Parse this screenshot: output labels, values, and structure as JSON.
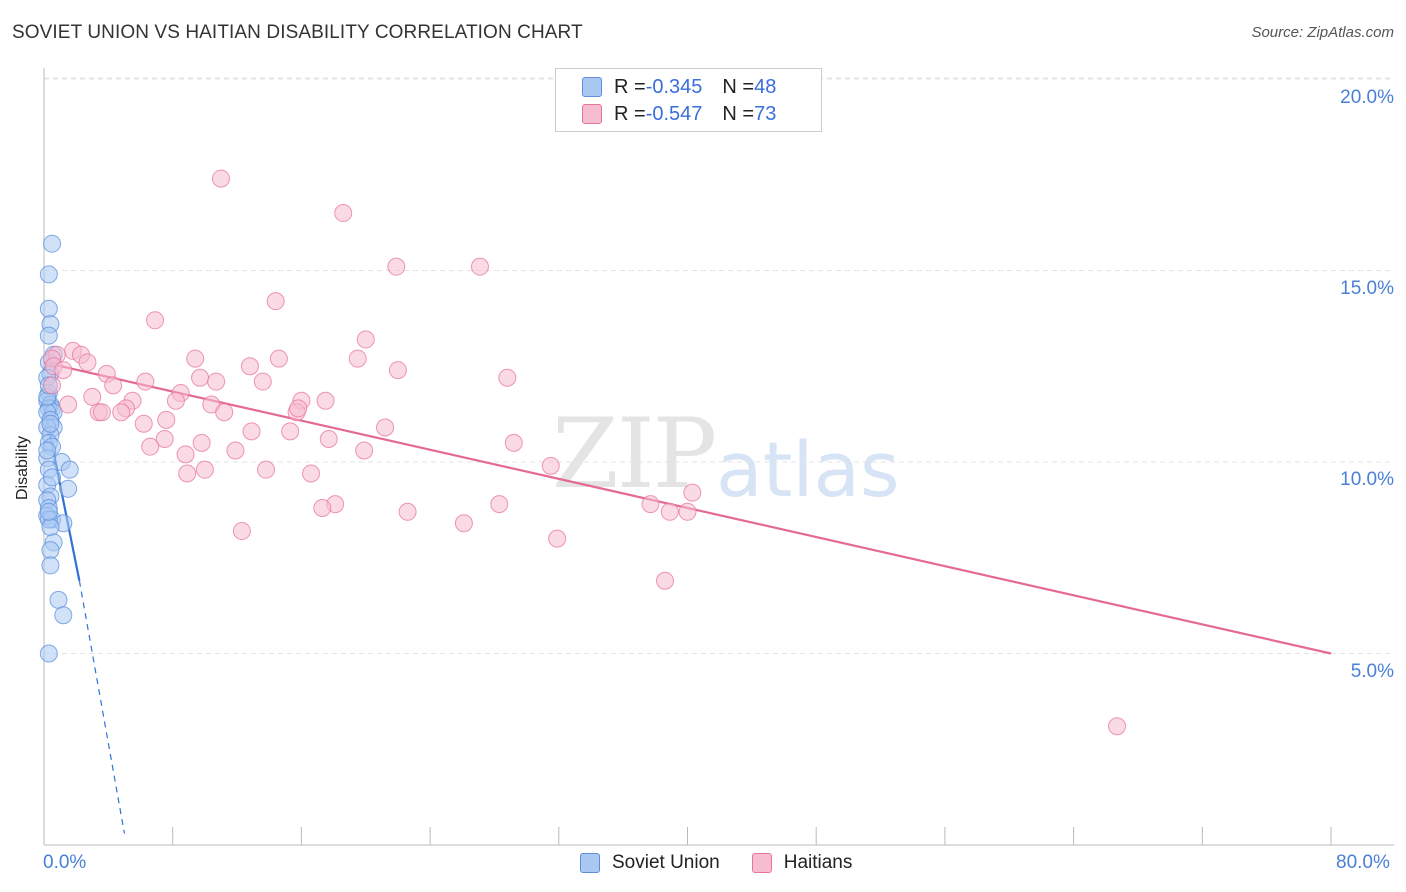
{
  "title": "SOVIET UNION VS HAITIAN DISABILITY CORRELATION CHART",
  "source": "Source: ZipAtlas.com",
  "colors": {
    "soviet": "#5b8fde",
    "soviet_fill": "#a9c8f2",
    "haitian": "#e8769c",
    "haitian_fill": "#f6bcd0",
    "tick_text": "#4a7fd6",
    "grid": "#e3e3e3"
  },
  "legend_top": {
    "rows": [
      {
        "r_label": "R = ",
        "r_value": "-0.345",
        "n_label": "N = ",
        "n_value": "48"
      },
      {
        "r_label": "R = ",
        "r_value": "-0.547",
        "n_label": "N = ",
        "n_value": "73"
      }
    ]
  },
  "legend_bottom": [
    "Soviet Union",
    "Haitians"
  ],
  "watermark": {
    "zip": "ZIP",
    "atlas": "atlas"
  },
  "chart_data": {
    "type": "scatter",
    "title": "SOVIET UNION VS HAITIAN DISABILITY CORRELATION CHART",
    "xlabel": "",
    "ylabel": "Disability",
    "xlim": [
      0,
      80
    ],
    "ylim": [
      0,
      20.5
    ],
    "x_tick_labels": [
      "0.0%",
      "80.0%"
    ],
    "y_ticks": [
      5,
      10,
      15,
      20
    ],
    "y_tick_labels": [
      "5.0%",
      "10.0%",
      "15.0%",
      "20.0%"
    ],
    "grid": true,
    "series": [
      {
        "name": "Soviet Union",
        "r": -0.345,
        "n": 48,
        "trend": {
          "x0": 0.0,
          "y0": 11.5,
          "x1": 2.2,
          "y1": 6.9,
          "dashed_to_x": 5.0,
          "dashed_to_y": 0.3
        },
        "points": [
          [
            0.5,
            15.7
          ],
          [
            0.3,
            14.9
          ],
          [
            0.3,
            14.0
          ],
          [
            0.4,
            13.6
          ],
          [
            0.3,
            13.3
          ],
          [
            0.6,
            12.8
          ],
          [
            0.3,
            12.6
          ],
          [
            0.4,
            12.3
          ],
          [
            0.2,
            12.2
          ],
          [
            0.3,
            11.8
          ],
          [
            0.2,
            11.6
          ],
          [
            0.4,
            11.5
          ],
          [
            0.5,
            11.4
          ],
          [
            0.3,
            11.4
          ],
          [
            0.6,
            11.3
          ],
          [
            0.2,
            11.3
          ],
          [
            0.4,
            11.1
          ],
          [
            0.6,
            10.9
          ],
          [
            0.2,
            10.9
          ],
          [
            0.4,
            10.7
          ],
          [
            0.3,
            10.5
          ],
          [
            0.5,
            10.4
          ],
          [
            1.1,
            10.0
          ],
          [
            0.2,
            10.1
          ],
          [
            1.6,
            9.8
          ],
          [
            0.3,
            9.8
          ],
          [
            1.5,
            9.3
          ],
          [
            0.2,
            9.4
          ],
          [
            0.4,
            9.1
          ],
          [
            0.2,
            9.0
          ],
          [
            0.3,
            8.8
          ],
          [
            0.2,
            8.6
          ],
          [
            0.5,
            8.5
          ],
          [
            1.2,
            8.4
          ],
          [
            0.3,
            8.5
          ],
          [
            0.4,
            8.3
          ],
          [
            0.6,
            7.9
          ],
          [
            0.4,
            7.7
          ],
          [
            0.4,
            7.3
          ],
          [
            0.9,
            6.4
          ],
          [
            1.2,
            6.0
          ],
          [
            0.3,
            5.0
          ],
          [
            0.2,
            11.7
          ],
          [
            0.3,
            12.0
          ],
          [
            0.4,
            11.0
          ],
          [
            0.2,
            10.3
          ],
          [
            0.5,
            9.6
          ],
          [
            0.3,
            8.7
          ]
        ]
      },
      {
        "name": "Haitians",
        "r": -0.547,
        "n": 73,
        "trend": {
          "x0": 0.0,
          "y0": 12.6,
          "x1": 80.0,
          "y1": 5.0
        },
        "points": [
          [
            11.0,
            17.4
          ],
          [
            18.6,
            16.5
          ],
          [
            21.9,
            15.1
          ],
          [
            27.1,
            15.1
          ],
          [
            14.4,
            14.2
          ],
          [
            6.9,
            13.7
          ],
          [
            20.0,
            13.2
          ],
          [
            1.8,
            12.9
          ],
          [
            0.8,
            12.8
          ],
          [
            0.5,
            12.7
          ],
          [
            2.3,
            12.8
          ],
          [
            9.4,
            12.7
          ],
          [
            12.8,
            12.5
          ],
          [
            2.7,
            12.6
          ],
          [
            22.0,
            12.4
          ],
          [
            0.6,
            12.5
          ],
          [
            1.2,
            12.4
          ],
          [
            28.8,
            12.2
          ],
          [
            3.9,
            12.3
          ],
          [
            6.3,
            12.1
          ],
          [
            9.7,
            12.2
          ],
          [
            10.7,
            12.1
          ],
          [
            13.6,
            12.1
          ],
          [
            0.5,
            12.0
          ],
          [
            4.3,
            12.0
          ],
          [
            8.5,
            11.8
          ],
          [
            19.5,
            12.7
          ],
          [
            14.6,
            12.7
          ],
          [
            16.0,
            11.6
          ],
          [
            3.0,
            11.7
          ],
          [
            5.5,
            11.6
          ],
          [
            8.2,
            11.6
          ],
          [
            10.4,
            11.5
          ],
          [
            17.5,
            11.6
          ],
          [
            1.5,
            11.5
          ],
          [
            5.1,
            11.4
          ],
          [
            4.8,
            11.3
          ],
          [
            3.4,
            11.3
          ],
          [
            3.6,
            11.3
          ],
          [
            11.2,
            11.3
          ],
          [
            15.7,
            11.3
          ],
          [
            15.8,
            11.4
          ],
          [
            6.2,
            11.0
          ],
          [
            7.6,
            11.1
          ],
          [
            12.9,
            10.8
          ],
          [
            15.3,
            10.8
          ],
          [
            21.2,
            10.9
          ],
          [
            7.5,
            10.6
          ],
          [
            17.7,
            10.6
          ],
          [
            9.8,
            10.5
          ],
          [
            6.6,
            10.4
          ],
          [
            11.9,
            10.3
          ],
          [
            29.2,
            10.5
          ],
          [
            19.9,
            10.3
          ],
          [
            8.8,
            10.2
          ],
          [
            31.5,
            9.9
          ],
          [
            10.0,
            9.8
          ],
          [
            13.8,
            9.8
          ],
          [
            16.6,
            9.7
          ],
          [
            8.9,
            9.7
          ],
          [
            40.3,
            9.2
          ],
          [
            37.7,
            8.9
          ],
          [
            28.3,
            8.9
          ],
          [
            18.1,
            8.9
          ],
          [
            17.3,
            8.8
          ],
          [
            22.6,
            8.7
          ],
          [
            38.9,
            8.7
          ],
          [
            40.0,
            8.7
          ],
          [
            26.1,
            8.4
          ],
          [
            12.3,
            8.2
          ],
          [
            31.9,
            8.0
          ],
          [
            38.6,
            6.9
          ],
          [
            66.7,
            3.1
          ]
        ]
      }
    ]
  }
}
